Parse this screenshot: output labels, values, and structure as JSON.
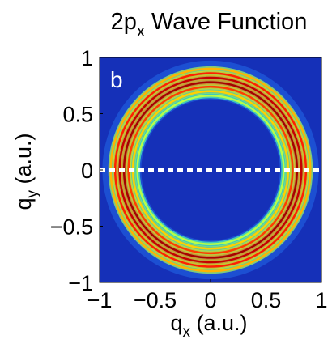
{
  "chart_data": {
    "type": "heatmap",
    "title": "2p",
    "title_sub": "x",
    "title_rest": " Wave Function",
    "panel_label": "b",
    "xlabel_main": "q",
    "xlabel_sub": "x",
    "xlabel_rest": " (a.u.)",
    "ylabel_main": "q",
    "ylabel_sub": "y",
    "ylabel_rest": " (a.u.)",
    "xlim": [
      -1,
      1
    ],
    "ylim": [
      -1,
      1
    ],
    "xticks": [
      -1,
      -0.5,
      0,
      0.5,
      1
    ],
    "xtick_labels": [
      "−1",
      "−0.5",
      "0",
      "0.5",
      "1"
    ],
    "yticks": [
      -1,
      -0.5,
      0,
      0.5,
      1
    ],
    "ytick_labels": [
      "−1",
      "−0.5",
      "0",
      "0.5",
      "1"
    ],
    "colormap": "jet",
    "background_color": "#1530b8",
    "reference_line": {
      "y": 0,
      "style": "dashed",
      "color": "#ffffff"
    },
    "rings": [
      {
        "radius": 0.78,
        "intensity": 1.0
      },
      {
        "radius": 0.82,
        "intensity": 0.95
      },
      {
        "radius": 0.86,
        "intensity": 0.8
      },
      {
        "radius": 0.9,
        "intensity": 0.55
      },
      {
        "radius": 0.74,
        "intensity": 0.75
      },
      {
        "radius": 0.7,
        "intensity": 0.5
      },
      {
        "radius": 0.66,
        "intensity": 0.3
      }
    ]
  }
}
